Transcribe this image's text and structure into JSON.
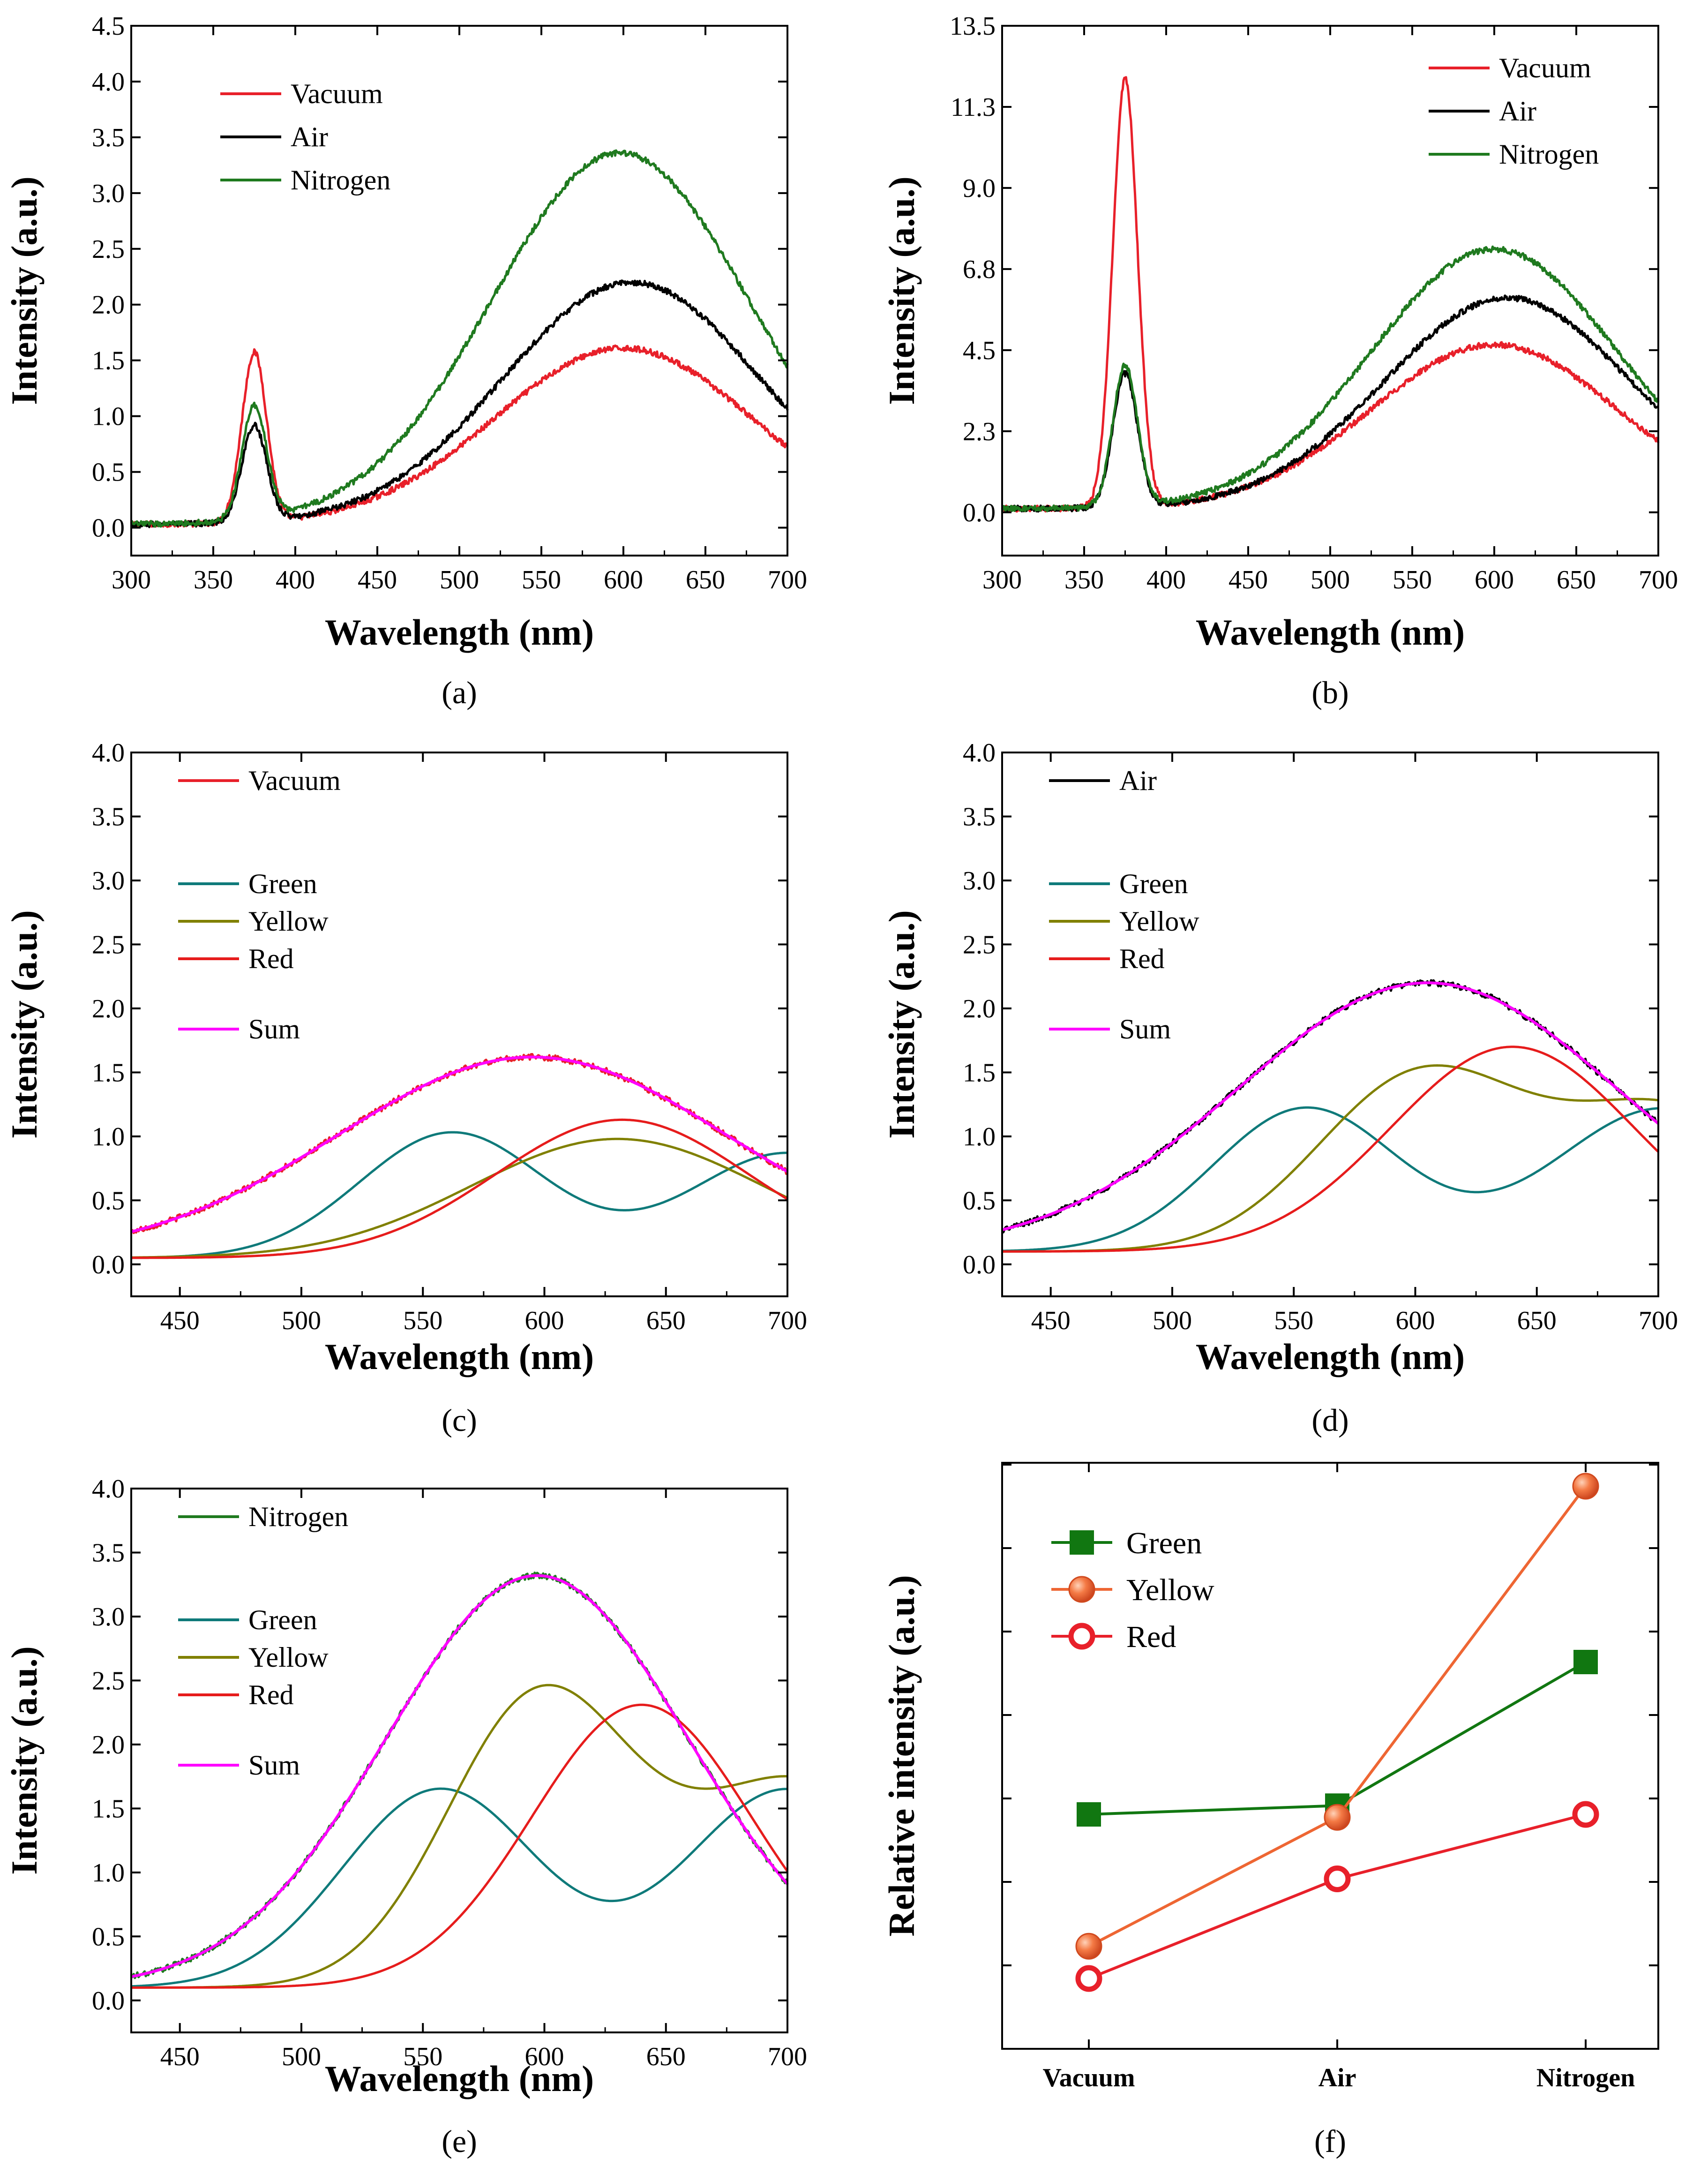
{
  "colors": {
    "vacuum": "#e8202a",
    "air": "#000000",
    "nitrogen": "#1f7a1f",
    "green": "#0f7a7a",
    "yellow": "#808000",
    "red": "#e61c1c",
    "sum": "#ff00ff",
    "f_green": "#117711",
    "f_yellow": "#ee6633",
    "f_red": "#e8202a"
  },
  "chart_data": [
    {
      "id": "a",
      "panel_label": "(a)",
      "type": "line",
      "xlabel": "Wavelength (nm)",
      "ylabel": "Intensity (a.u.)",
      "xlim": [
        300,
        700
      ],
      "ylim": [
        -0.25,
        4.5
      ],
      "xticks": [
        "300",
        "350",
        "400",
        "450",
        "500",
        "550",
        "600",
        "650",
        "700"
      ],
      "yticks": [
        "0.0",
        "0.5",
        "1.0",
        "1.5",
        "2.0",
        "2.5",
        "3.0",
        "3.5",
        "4.0",
        "4.5"
      ],
      "legend_position": "top-left",
      "series": [
        {
          "name": "Vacuum",
          "color_key": "vacuum",
          "base": 0.03,
          "peaks": [
            [
              375,
              1.52,
              7.5
            ],
            [
              600,
              1.58,
              78
            ]
          ]
        },
        {
          "name": "Air",
          "color_key": "air",
          "base": 0.03,
          "peaks": [
            [
              375,
              0.86,
              7.5
            ],
            [
              605,
              2.17,
              78
            ]
          ]
        },
        {
          "name": "Nitrogen",
          "color_key": "nitrogen",
          "base": 0.03,
          "peaks": [
            [
              375,
              1.01,
              7.5
            ],
            [
              598,
              3.33,
              78
            ]
          ]
        }
      ]
    },
    {
      "id": "b",
      "panel_label": "(b)",
      "type": "line",
      "xlabel": "Wavelength (nm)",
      "ylabel": "Intensity (a.u.)",
      "xlim": [
        300,
        700
      ],
      "ylim": [
        -1.2,
        13.5
      ],
      "xticks": [
        "300",
        "350",
        "400",
        "450",
        "500",
        "550",
        "600",
        "650",
        "700"
      ],
      "yticks": [
        "0.0",
        "2.3",
        "4.5",
        "6.8",
        "9.0",
        "11.3",
        "13.5"
      ],
      "ytick_values": [
        0.0,
        2.25,
        4.5,
        6.75,
        9.0,
        11.25,
        13.5
      ],
      "legend_position": "top-right",
      "series": [
        {
          "name": "Vacuum",
          "color_key": "vacuum",
          "base": 0.1,
          "peaks": [
            [
              375,
              11.9,
              7.5
            ],
            [
              600,
              4.55,
              75
            ]
          ]
        },
        {
          "name": "Air",
          "color_key": "air",
          "base": 0.1,
          "peaks": [
            [
              375,
              3.7,
              7.5
            ],
            [
              608,
              5.85,
              75
            ]
          ]
        },
        {
          "name": "Nitrogen",
          "color_key": "nitrogen",
          "base": 0.1,
          "peaks": [
            [
              375,
              3.9,
              7.5
            ],
            [
              600,
              7.2,
              75
            ]
          ]
        }
      ]
    },
    {
      "id": "c",
      "panel_label": "(c)",
      "type": "line",
      "xlabel": "Wavelength (nm)",
      "ylabel": "Intensity (a.u.)",
      "xlim": [
        430,
        700
      ],
      "ylim": [
        -0.25,
        4.0
      ],
      "xticks": [
        "450",
        "500",
        "550",
        "600",
        "650",
        "700"
      ],
      "yticks": [
        "0.0",
        "0.5",
        "1.0",
        "1.5",
        "2.0",
        "2.5",
        "3.0",
        "3.5",
        "4.0"
      ],
      "legend_position": "top-left",
      "series": [
        {
          "name": "Vacuum",
          "color_key": "vacuum",
          "base": 0.07,
          "peaks": [
            [
              595,
              1.55,
              80
            ]
          ],
          "noise": true
        },
        {
          "name": "Green",
          "color_key": "green",
          "base": 0.05,
          "peaks": [
            [
              562,
              0.98,
              38
            ],
            [
              700,
              0.82,
              40
            ]
          ]
        },
        {
          "name": "Yellow",
          "color_key": "yellow",
          "base": 0.05,
          "peaks": [
            [
              630,
              0.93,
              60
            ]
          ]
        },
        {
          "name": "Red",
          "color_key": "red",
          "base": 0.05,
          "peaks": [
            [
              632,
              1.08,
              52
            ]
          ]
        },
        {
          "name": "Sum",
          "color_key": "sum",
          "base": 0.07,
          "peaks": [
            [
              595,
              1.55,
              80
            ]
          ]
        }
      ]
    },
    {
      "id": "d",
      "panel_label": "(d)",
      "type": "line",
      "xlabel": "Wavelength (nm)",
      "ylabel": "Intensity (a.u.)",
      "xlim": [
        430,
        700
      ],
      "ylim": [
        -0.25,
        4.0
      ],
      "xticks": [
        "450",
        "500",
        "550",
        "600",
        "650",
        "700"
      ],
      "yticks": [
        "0.0",
        "0.5",
        "1.0",
        "1.5",
        "2.0",
        "2.5",
        "3.0",
        "3.5",
        "4.0"
      ],
      "legend_position": "top-left",
      "series": [
        {
          "name": "Air",
          "color_key": "air",
          "base": 0.1,
          "peaks": [
            [
              605,
              2.1,
              78
            ]
          ],
          "noise": true
        },
        {
          "name": "Green",
          "color_key": "green",
          "base": 0.1,
          "peaks": [
            [
              555,
              1.12,
              38
            ],
            [
              702,
              1.12,
              45
            ]
          ]
        },
        {
          "name": "Yellow",
          "color_key": "yellow",
          "base": 0.1,
          "peaks": [
            [
              602,
              1.36,
              42
            ],
            [
              705,
              1.1,
              45
            ]
          ]
        },
        {
          "name": "Red",
          "color_key": "red",
          "base": 0.1,
          "peaks": [
            [
              640,
              1.6,
              50
            ]
          ]
        },
        {
          "name": "Sum",
          "color_key": "sum",
          "base": 0.1,
          "peaks": [
            [
              605,
              2.1,
              78
            ]
          ]
        }
      ]
    },
    {
      "id": "e",
      "panel_label": "(e)",
      "type": "line",
      "xlabel": "Wavelength (nm)",
      "ylabel": "Intensity (a.u.)",
      "xlim": [
        430,
        700
      ],
      "ylim": [
        -0.25,
        4.0
      ],
      "xticks": [
        "450",
        "500",
        "550",
        "600",
        "650",
        "700"
      ],
      "yticks": [
        "0.0",
        "0.5",
        "1.0",
        "1.5",
        "2.0",
        "2.5",
        "3.0",
        "3.5",
        "4.0"
      ],
      "legend_position": "top-left",
      "series": [
        {
          "name": "Nitrogen",
          "color_key": "nitrogen",
          "base": 0.1,
          "peaks": [
            [
              597,
              3.22,
              62
            ]
          ],
          "noise": true
        },
        {
          "name": "Green",
          "color_key": "green",
          "base": 0.1,
          "peaks": [
            [
              557,
              1.55,
              40
            ],
            [
              700,
              1.55,
              42
            ]
          ]
        },
        {
          "name": "Yellow",
          "color_key": "yellow",
          "base": 0.1,
          "peaks": [
            [
              598,
              2.26,
              38
            ],
            [
              705,
              1.6,
              45
            ]
          ]
        },
        {
          "name": "Red",
          "color_key": "red",
          "base": 0.1,
          "peaks": [
            [
              640,
              2.21,
              45
            ]
          ]
        },
        {
          "name": "Sum",
          "color_key": "sum",
          "base": 0.1,
          "peaks": [
            [
              597,
              3.22,
              62
            ]
          ]
        }
      ]
    },
    {
      "id": "f",
      "panel_label": "(f)",
      "type": "line",
      "xlabel": "",
      "ylabel": "Relative intensity (a.u.)",
      "categories": [
        "Vacuum",
        "Air",
        "Nitrogen"
      ],
      "ylim": [
        0,
        10
      ],
      "legend_position": "top-left",
      "series": [
        {
          "name": "Green",
          "color_key": "f_green",
          "marker": "square",
          "values": [
            4.0,
            4.15,
            6.6
          ]
        },
        {
          "name": "Yellow",
          "color_key": "f_yellow",
          "marker": "ball",
          "values": [
            1.75,
            3.95,
            9.6
          ]
        },
        {
          "name": "Red",
          "color_key": "f_red",
          "marker": "open-circle",
          "values": [
            1.2,
            2.9,
            4.0
          ]
        }
      ]
    }
  ]
}
